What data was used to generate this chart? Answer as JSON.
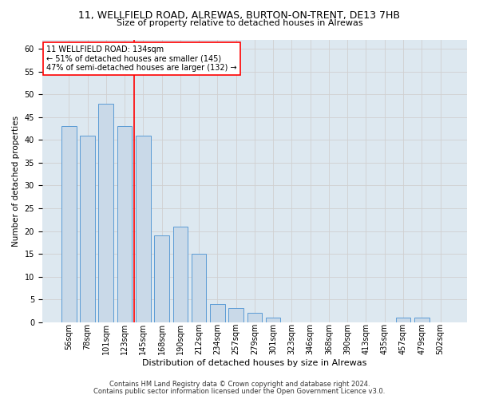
{
  "title_line1": "11, WELLFIELD ROAD, ALREWAS, BURTON-ON-TRENT, DE13 7HB",
  "title_line2": "Size of property relative to detached houses in Alrewas",
  "xlabel": "Distribution of detached houses by size in Alrewas",
  "ylabel": "Number of detached properties",
  "categories": [
    "56sqm",
    "78sqm",
    "101sqm",
    "123sqm",
    "145sqm",
    "168sqm",
    "190sqm",
    "212sqm",
    "234sqm",
    "257sqm",
    "279sqm",
    "301sqm",
    "323sqm",
    "346sqm",
    "368sqm",
    "390sqm",
    "413sqm",
    "435sqm",
    "457sqm",
    "479sqm",
    "502sqm"
  ],
  "values": [
    43,
    41,
    48,
    43,
    41,
    19,
    21,
    15,
    4,
    3,
    2,
    1,
    0,
    0,
    0,
    0,
    0,
    0,
    1,
    1,
    0
  ],
  "bar_color": "#c9d9e8",
  "bar_edge_color": "#5b9bd5",
  "annotation_text": "11 WELLFIELD ROAD: 134sqm\n← 51% of detached houses are smaller (145)\n47% of semi-detached houses are larger (132) →",
  "annotation_box_color": "white",
  "annotation_box_edgecolor": "red",
  "vline_color": "red",
  "vline_x": 3.5,
  "ylim": [
    0,
    62
  ],
  "yticks": [
    0,
    5,
    10,
    15,
    20,
    25,
    30,
    35,
    40,
    45,
    50,
    55,
    60
  ],
  "footer_line1": "Contains HM Land Registry data © Crown copyright and database right 2024.",
  "footer_line2": "Contains public sector information licensed under the Open Government Licence v3.0.",
  "bar_width": 0.8,
  "grid_color": "#d0d0d0",
  "bg_color": "#dde8f0",
  "title_fontsize": 9,
  "subtitle_fontsize": 8,
  "xlabel_fontsize": 8,
  "ylabel_fontsize": 7.5,
  "tick_fontsize": 7,
  "footer_fontsize": 6,
  "annotation_fontsize": 7
}
